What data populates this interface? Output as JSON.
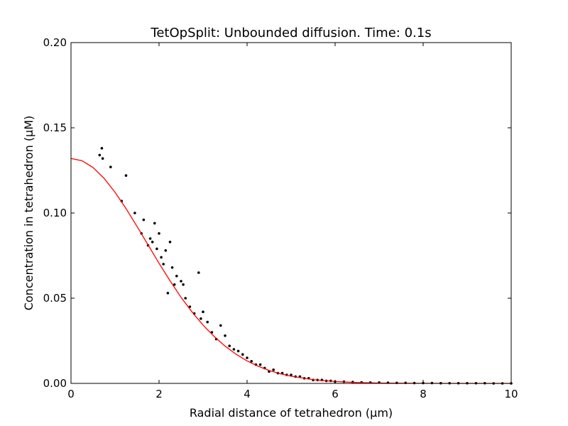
{
  "chart_data": {
    "type": "scatter",
    "title": "TetOpSplit: Unbounded diffusion. Time: 0.1s",
    "xlabel": "Radial distance of tetrahedron (μm)",
    "ylabel": "Concentration in tetrahedron (μM)",
    "xlim": [
      0,
      10
    ],
    "ylim": [
      0,
      0.2
    ],
    "xticks": [
      "0",
      "2",
      "4",
      "6",
      "8",
      "10"
    ],
    "yticks": [
      "0.00",
      "0.05",
      "0.10",
      "0.15",
      "0.20"
    ],
    "grid": false,
    "colors": {
      "points": "#000000",
      "curve": "#ff0000"
    },
    "series": [
      {
        "kind": "points",
        "x": [
          0.65,
          0.7,
          0.72,
          0.9,
          1.15,
          1.25,
          1.45,
          1.6,
          1.65,
          1.75,
          1.8,
          1.85,
          1.9,
          1.95,
          2.0,
          2.05,
          2.1,
          2.15,
          2.2,
          2.25,
          2.3,
          2.35,
          2.4,
          2.5,
          2.55,
          2.6,
          2.7,
          2.8,
          2.9,
          2.95,
          3.0,
          3.1,
          3.2,
          3.3,
          3.4,
          3.5,
          3.6,
          3.7,
          3.8,
          3.9,
          4.0,
          4.1,
          4.2,
          4.3,
          4.4,
          4.5,
          4.6,
          4.7,
          4.8,
          4.9,
          5.0,
          5.1,
          5.2,
          5.3,
          5.4,
          5.5,
          5.6,
          5.7,
          5.8,
          5.9,
          6.0,
          6.2,
          6.4,
          6.6,
          6.8,
          7.0,
          7.2,
          7.4,
          7.6,
          7.8,
          8.0,
          8.2,
          8.4,
          8.6,
          8.8,
          9.0,
          9.2,
          9.4,
          9.6,
          9.8,
          10.0
        ],
        "y": [
          0.134,
          0.138,
          0.132,
          0.127,
          0.107,
          0.122,
          0.1,
          0.088,
          0.096,
          0.081,
          0.085,
          0.083,
          0.094,
          0.079,
          0.088,
          0.074,
          0.07,
          0.078,
          0.053,
          0.083,
          0.068,
          0.058,
          0.063,
          0.06,
          0.058,
          0.05,
          0.045,
          0.041,
          0.065,
          0.038,
          0.042,
          0.036,
          0.03,
          0.026,
          0.034,
          0.028,
          0.022,
          0.02,
          0.019,
          0.017,
          0.015,
          0.013,
          0.011,
          0.011,
          0.009,
          0.007,
          0.008,
          0.006,
          0.006,
          0.005,
          0.005,
          0.004,
          0.004,
          0.003,
          0.003,
          0.002,
          0.002,
          0.002,
          0.0015,
          0.0015,
          0.001,
          0.001,
          0.0008,
          0.0006,
          0.0005,
          0.0005,
          0.0004,
          0.0003,
          0.0003,
          0.0002,
          0.0002,
          0.0002,
          0.0001,
          0.0001,
          0.0001,
          0.0001,
          0.0001,
          0.0001,
          0.0,
          0.0,
          0.0
        ]
      },
      {
        "kind": "analytical-curve",
        "x": [
          0,
          0.25,
          0.5,
          0.75,
          1.0,
          1.25,
          1.5,
          1.75,
          2.0,
          2.25,
          2.5,
          2.75,
          3.0,
          3.25,
          3.5,
          3.75,
          4.0,
          4.25,
          4.5,
          4.75,
          5.0,
          5.5,
          6.0,
          6.5,
          7.0,
          8.0,
          9.0,
          10.0
        ],
        "y": [
          0.132,
          0.1307,
          0.1267,
          0.1204,
          0.1122,
          0.1026,
          0.0921,
          0.0813,
          0.0705,
          0.0602,
          0.0505,
          0.0419,
          0.0342,
          0.0276,
          0.0219,
          0.0171,
          0.0132,
          0.0101,
          0.0076,
          0.0057,
          0.0042,
          0.0022,
          0.0011,
          0.0005,
          0.0002,
          4e-05,
          0.0,
          0.0
        ]
      }
    ]
  }
}
